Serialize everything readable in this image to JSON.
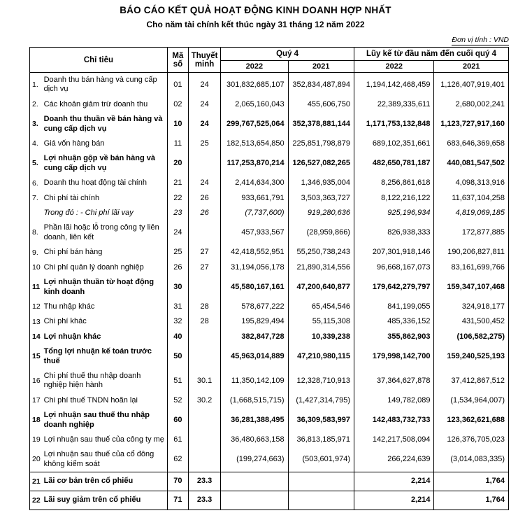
{
  "header": {
    "title": "BÁO CÁO KẾT QUẢ HOẠT ĐỘNG KINH DOANH HỢP NHẤT",
    "subtitle": "Cho năm tài chính kết thúc ngày 31 tháng 12 năm 2022",
    "unit_note": "Đơn vị tính : VND"
  },
  "table": {
    "headers": {
      "criteria": "Chỉ tiêu",
      "code": "Mã số",
      "notes": "Thuyết minh",
      "q4_group": "Quý 4",
      "ytd_group": "Lũy kế từ đầu năm đến cuối quý 4",
      "years": [
        "2022",
        "2021",
        "2022",
        "2021"
      ]
    },
    "rows": [
      {
        "no": "1.",
        "name": "Doanh thu bán hàng và cung cấp dịch vụ",
        "code": "01",
        "note": "24",
        "v": [
          "301,832,685,107",
          "352,834,487,894",
          "1,194,142,468,459",
          "1,126,407,919,401"
        ],
        "style": "normal"
      },
      {
        "no": "2.",
        "name": "Các khoản giảm trừ doanh thu",
        "code": "02",
        "note": "24",
        "v": [
          "2,065,160,043",
          "455,606,750",
          "22,389,335,611",
          "2,680,002,241"
        ],
        "style": "normal"
      },
      {
        "no": "3.",
        "name": "Doanh thu thuần về bán hàng và cung cấp dịch vụ",
        "code": "10",
        "note": "24",
        "v": [
          "299,767,525,064",
          "352,378,881,144",
          "1,171,753,132,848",
          "1,123,727,917,160"
        ],
        "style": "bold"
      },
      {
        "no": "4.",
        "name": "Giá vốn hàng bán",
        "code": "11",
        "note": "25",
        "v": [
          "182,513,654,850",
          "225,851,798,879",
          "689,102,351,661",
          "683,646,369,658"
        ],
        "style": "normal"
      },
      {
        "no": "5.",
        "name": "Lợi nhuận gộp về bán hàng và cung cấp dịch vụ",
        "code": "20",
        "note": "",
        "v": [
          "117,253,870,214",
          "126,527,082,265",
          "482,650,781,187",
          "440,081,547,502"
        ],
        "style": "bold"
      },
      {
        "no": "6.",
        "name": "Doanh thu hoạt động tài chính",
        "code": "21",
        "note": "24",
        "v": [
          "2,414,634,300",
          "1,346,935,004",
          "8,256,861,618",
          "4,098,313,916"
        ],
        "style": "normal"
      },
      {
        "no": "7.",
        "name": "Chi phí tài chính",
        "code": "22",
        "note": "26",
        "v": [
          "933,661,791",
          "3,503,363,727",
          "8,122,216,122",
          "11,637,104,258"
        ],
        "style": "normal"
      },
      {
        "no": "",
        "name": "Trong đó : - Chi phí lãi vay",
        "code": "23",
        "note": "26",
        "v": [
          "(7,737,600)",
          "919,280,636",
          "925,196,934",
          "4,819,069,185"
        ],
        "style": "italic"
      },
      {
        "no": "8.",
        "name": "Phần lãi hoặc lỗ trong công ty liên doanh, liên kết",
        "code": "24",
        "note": "",
        "v": [
          "457,933,567",
          "(28,959,866)",
          "826,938,333",
          "172,877,885"
        ],
        "style": "normal"
      },
      {
        "no": "9.",
        "name": "Chi phí bán hàng",
        "code": "25",
        "note": "27",
        "v": [
          "42,418,552,951",
          "55,250,738,243",
          "207,301,918,146",
          "190,206,827,811"
        ],
        "style": "normal"
      },
      {
        "no": "10",
        "name": "Chi phí quản lý doanh nghiệp",
        "code": "26",
        "note": "27",
        "v": [
          "31,194,056,178",
          "21,890,314,556",
          "96,668,167,073",
          "83,161,699,766"
        ],
        "style": "normal"
      },
      {
        "no": "11",
        "name": "Lợi nhuận thuần từ hoạt động kinh doanh",
        "code": "30",
        "note": "",
        "v": [
          "45,580,167,161",
          "47,200,640,877",
          "179,642,279,797",
          "159,347,107,468"
        ],
        "style": "bold"
      },
      {
        "no": "12",
        "name": "Thu nhập khác",
        "code": "31",
        "note": "28",
        "v": [
          "578,677,222",
          "65,454,546",
          "841,199,055",
          "324,918,177"
        ],
        "style": "normal"
      },
      {
        "no": "13",
        "name": "Chi phí khác",
        "code": "32",
        "note": "28",
        "v": [
          "195,829,494",
          "55,115,308",
          "485,336,152",
          "431,500,452"
        ],
        "style": "normal"
      },
      {
        "no": "14",
        "name": "Lợi nhuận khác",
        "code": "40",
        "note": "",
        "v": [
          "382,847,728",
          "10,339,238",
          "355,862,903",
          "(106,582,275)"
        ],
        "style": "bold"
      },
      {
        "no": "15",
        "name": "Tổng lợi nhuận kế toán trước thuế",
        "code": "50",
        "note": "",
        "v": [
          "45,963,014,889",
          "47,210,980,115",
          "179,998,142,700",
          "159,240,525,193"
        ],
        "style": "bold"
      },
      {
        "no": "16",
        "name": "Chi phí thuế thu nhập doanh nghiệp hiện hành",
        "code": "51",
        "note": "30.1",
        "v": [
          "11,350,142,109",
          "12,328,710,913",
          "37,364,627,878",
          "37,412,867,512"
        ],
        "style": "normal"
      },
      {
        "no": "17",
        "name": "Chi phí thuế TNDN hoãn lại",
        "code": "52",
        "note": "30.2",
        "v": [
          "(1,668,515,715)",
          "(1,427,314,795)",
          "149,782,089",
          "(1,534,964,007)"
        ],
        "style": "normal"
      },
      {
        "no": "18",
        "name": "Lợi nhuận sau thuế thu nhập doanh nghiệp",
        "code": "60",
        "note": "",
        "v": [
          "36,281,388,495",
          "36,309,583,997",
          "142,483,732,733",
          "123,362,621,688"
        ],
        "style": "bold"
      },
      {
        "no": "19",
        "name": "Lợi nhuận sau thuế của công ty mẹ",
        "code": "61",
        "note": "",
        "v": [
          "36,480,663,158",
          "36,813,185,971",
          "142,217,508,094",
          "126,376,705,023"
        ],
        "style": "normal"
      },
      {
        "no": "20",
        "name": "Lợi nhuận sau thuế của cổ đông không kiểm soát",
        "code": "62",
        "note": "",
        "v": [
          "(199,274,663)",
          "(503,601,974)",
          "266,224,639",
          "(3,014,083,335)"
        ],
        "style": "normal"
      },
      {
        "no": "21",
        "name": "Lãi cơ bản trên cổ phiếu",
        "code": "70",
        "note": "23.3",
        "v": [
          "",
          "",
          "2,214",
          "1,764"
        ],
        "style": "bold bordered"
      },
      {
        "no": "22",
        "name": "Lãi suy giảm trên cổ phiếu",
        "code": "71",
        "note": "23.3",
        "v": [
          "",
          "",
          "2,214",
          "1,764"
        ],
        "style": "bold bordered"
      }
    ]
  }
}
